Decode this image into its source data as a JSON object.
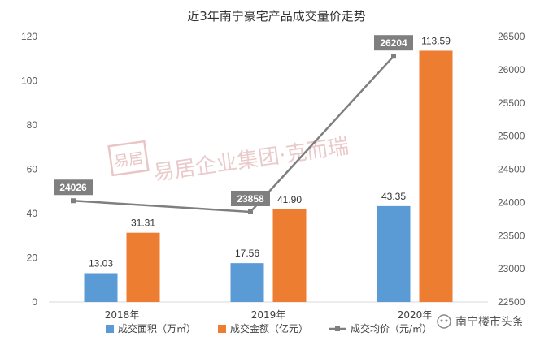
{
  "chart_data": {
    "type": "bar",
    "title": "近3年南宁豪宅产品成交量价走势",
    "categories": [
      "2018年",
      "2019年",
      "2020年"
    ],
    "series": [
      {
        "name": "成交面积（万㎡）",
        "kind": "bar",
        "axis": "left",
        "color": "#5b9bd5",
        "values": [
          13.03,
          17.56,
          43.35
        ],
        "labels": [
          "13.03",
          "17.56",
          "43.35"
        ]
      },
      {
        "name": "成交金额（亿元）",
        "kind": "bar",
        "axis": "left",
        "color": "#ed7d31",
        "values": [
          31.31,
          41.9,
          113.59
        ],
        "labels": [
          "31.31",
          "41.90",
          "113.59"
        ]
      },
      {
        "name": "成交均价（元/㎡）",
        "kind": "line",
        "axis": "right",
        "color": "#7f7f7f",
        "values": [
          24026,
          23858,
          26204
        ],
        "labels": [
          "24026",
          "23858",
          "26204"
        ]
      }
    ],
    "yleft": {
      "min": 0,
      "max": 120,
      "ticks": [
        "0",
        "20",
        "40",
        "60",
        "80",
        "100",
        "120"
      ]
    },
    "yright": {
      "min": 22500,
      "max": 26500,
      "ticks": [
        "22500",
        "23000",
        "23500",
        "24000",
        "24500",
        "25000",
        "25500",
        "26000",
        "26500"
      ]
    },
    "grid": false,
    "legend_position": "bottom"
  },
  "watermark": {
    "seal": "易居",
    "text": "易居企业集团·克而瑞"
  },
  "source_badge": {
    "text": "南宁楼市头条"
  }
}
